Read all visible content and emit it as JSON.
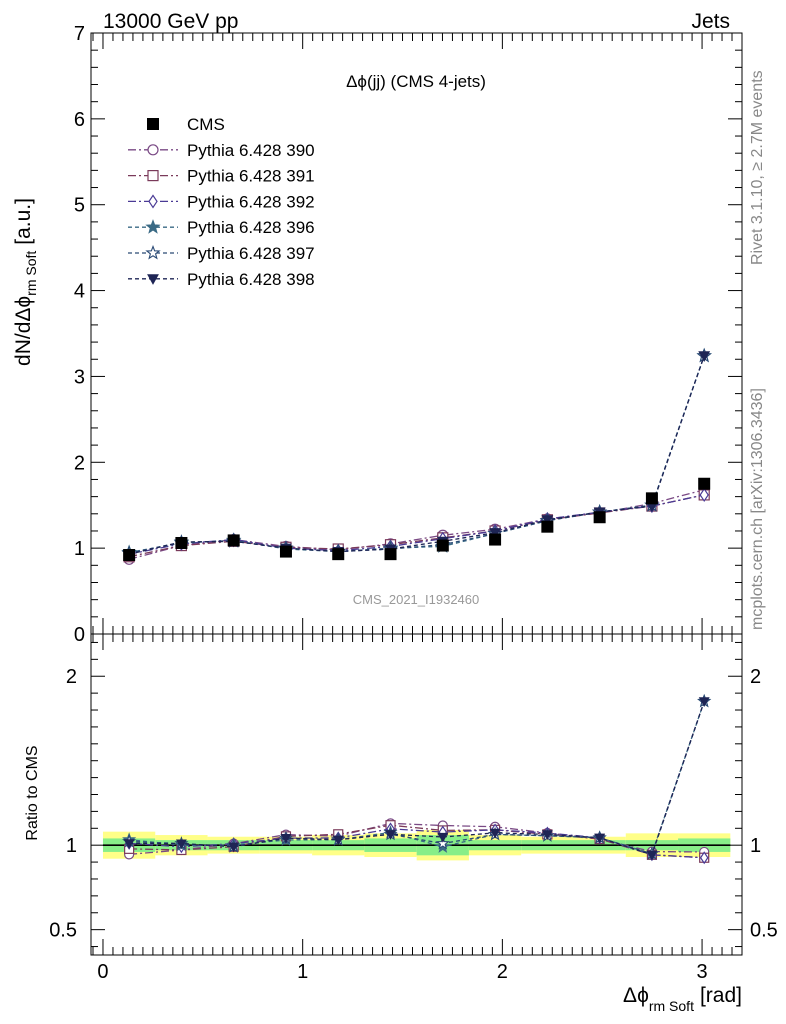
{
  "header": {
    "left": "13000 GeV pp",
    "right": "Jets"
  },
  "side": {
    "rivet": "Rivet 3.1.10, ≥ 2.7M events",
    "mcplots": "mcplots.cern.ch [arXiv:1306.3436]"
  },
  "chart_data": {
    "type": "line",
    "title": "Δϕ(jj) (CMS 4-jets)",
    "watermark": "CMS_2021_I1932460",
    "ylabel_main": "dN/dΔϕ",
    "ylabel_main_sub": "rm Soft",
    "ylabel_main_unit": "[a.u.]",
    "ylabel_ratio": "Ratio to CMS",
    "xlabel": "Δϕ",
    "xlabel_sub": "rm Soft",
    "xlabel_unit": "[rad]",
    "xlim": [
      -0.06,
      3.2
    ],
    "ylim_main": [
      0,
      7
    ],
    "ylim_ratio": [
      0.35,
      2.25
    ],
    "x_ticks": [
      "0",
      "1",
      "2",
      "3"
    ],
    "y_ticks_main": [
      "0",
      "1",
      "2",
      "3",
      "4",
      "5",
      "6",
      "7"
    ],
    "y_ticks_ratio": [
      "0.5",
      "1",
      "2"
    ],
    "x": [
      0.1309,
      0.3927,
      0.6545,
      0.9163,
      1.1781,
      1.4399,
      1.7017,
      1.9635,
      2.2253,
      2.4871,
      2.7489,
      3.0107
    ],
    "data": {
      "name": "CMS",
      "values": [
        0.92,
        1.06,
        1.09,
        0.96,
        0.93,
        0.93,
        1.03,
        1.1,
        1.25,
        1.36,
        1.58,
        1.75
      ]
    },
    "band_edges": [
      0.0,
      0.2618,
      0.5236,
      0.7854,
      1.0472,
      1.309,
      1.5708,
      1.8326,
      2.0944,
      2.3562,
      2.618,
      2.8798,
      3.1416
    ],
    "band_inner": [
      0.04,
      0.03,
      0.03,
      0.03,
      0.03,
      0.04,
      0.06,
      0.03,
      0.03,
      0.03,
      0.03,
      0.04
    ],
    "band_outer": [
      0.08,
      0.06,
      0.05,
      0.05,
      0.06,
      0.07,
      0.09,
      0.06,
      0.05,
      0.05,
      0.07,
      0.07
    ],
    "series": [
      {
        "name": "Pythia 6.428 390",
        "color": "#7a4a85",
        "marker": "circle-open",
        "dash": "8,3,2,3",
        "values": [
          0.87,
          1.03,
          1.1,
          1.02,
          0.98,
          1.05,
          1.15,
          1.22,
          1.34,
          1.41,
          1.52,
          1.68
        ]
      },
      {
        "name": "Pythia 6.428 391",
        "color": "#7a3a5a",
        "marker": "square-open",
        "dash": "8,3,2,3",
        "values": [
          0.9,
          1.03,
          1.08,
          1.01,
          0.99,
          1.04,
          1.12,
          1.2,
          1.33,
          1.41,
          1.49,
          1.62
        ]
      },
      {
        "name": "Pythia 6.428 392",
        "color": "#4a3a95",
        "marker": "diamond-open",
        "dash": "8,3,2,3",
        "values": [
          0.93,
          1.05,
          1.1,
          1.0,
          0.97,
          1.02,
          1.11,
          1.2,
          1.34,
          1.42,
          1.49,
          1.62
        ]
      },
      {
        "name": "Pythia 6.428 396",
        "color": "#3a6a85",
        "marker": "star-filled",
        "dash": "4,3",
        "values": [
          0.95,
          1.06,
          1.09,
          0.99,
          0.96,
          1.0,
          1.02,
          1.17,
          1.32,
          1.42,
          1.5,
          3.24
        ]
      },
      {
        "name": "Pythia 6.428 397",
        "color": "#2a4a75",
        "marker": "star-open",
        "dash": "4,3",
        "values": [
          0.94,
          1.07,
          1.08,
          1.0,
          0.96,
          0.99,
          1.04,
          1.17,
          1.32,
          1.42,
          1.5,
          3.24
        ]
      },
      {
        "name": "Pythia 6.428 398",
        "color": "#1e2555",
        "marker": "triangle-down-filled",
        "dash": "4,3",
        "values": [
          0.93,
          1.07,
          1.08,
          1.0,
          0.96,
          0.99,
          1.08,
          1.18,
          1.33,
          1.42,
          1.49,
          3.24
        ]
      }
    ]
  }
}
